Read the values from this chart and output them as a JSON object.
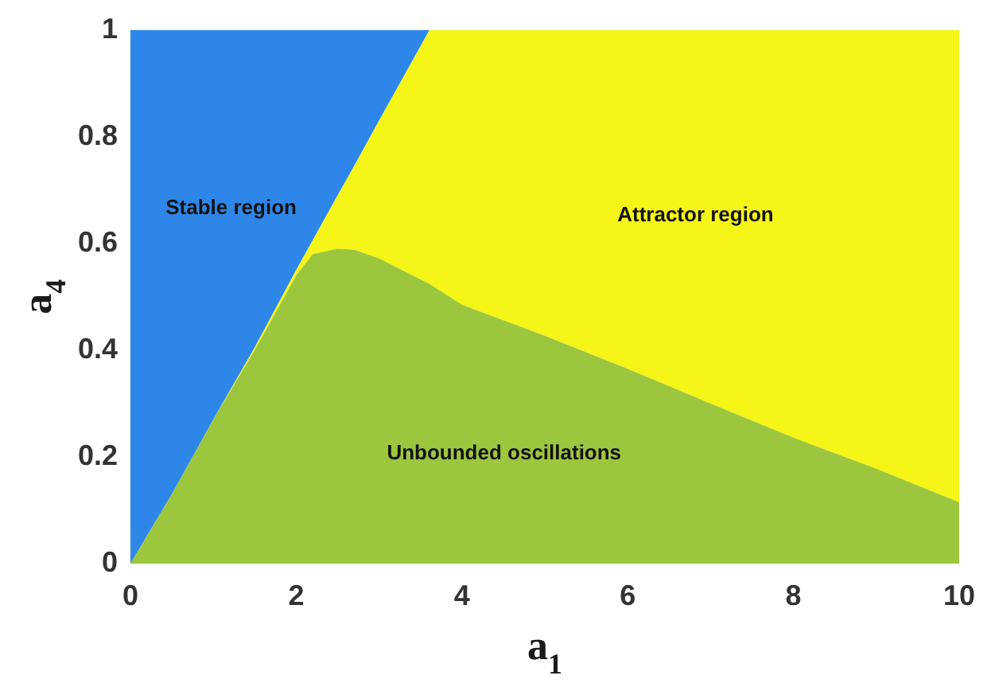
{
  "chart_data": {
    "type": "area",
    "stacked": true,
    "xlabel": "a$_{1}$",
    "ylabel": "a$_{4}$",
    "x": [
      0,
      0.5,
      1,
      1.5,
      2,
      2.2,
      2.5,
      2.7,
      3,
      3.61,
      4,
      5,
      6,
      7,
      8,
      9,
      10
    ],
    "series": [
      {
        "name": "Unbounded oscillations",
        "color": "#9dc63f",
        "values": [
          0,
          0.13,
          0.27,
          0.4,
          0.54,
          0.58,
          0.59,
          0.588,
          0.572,
          0.524,
          0.485,
          0.427,
          0.365,
          0.3,
          0.236,
          0.178,
          0.115
        ]
      },
      {
        "name": "Attractor region",
        "color": "#f5f517",
        "values": [
          0,
          0,
          0,
          0.005,
          0.01,
          0.026,
          0.1,
          0.157,
          0.258,
          0.476,
          0.515,
          0.573,
          0.635,
          0.7,
          0.764,
          0.822,
          0.885
        ]
      },
      {
        "name": "Stable region",
        "color": "#2e87e8",
        "x": [
          0,
          0.5,
          1,
          1.5,
          2,
          2.2,
          2.5,
          2.7,
          3,
          3.61
        ],
        "values": [
          1,
          0.87,
          0.73,
          0.595,
          0.45,
          0.394,
          0.31,
          0.255,
          0.17,
          0
        ]
      }
    ],
    "xlim": [
      0,
      10
    ],
    "ylim": [
      0,
      1
    ],
    "xticks": [
      0,
      2,
      4,
      6,
      8,
      10
    ],
    "yticks": [
      0,
      0.2,
      0.4,
      0.6,
      0.8,
      1
    ]
  }
}
